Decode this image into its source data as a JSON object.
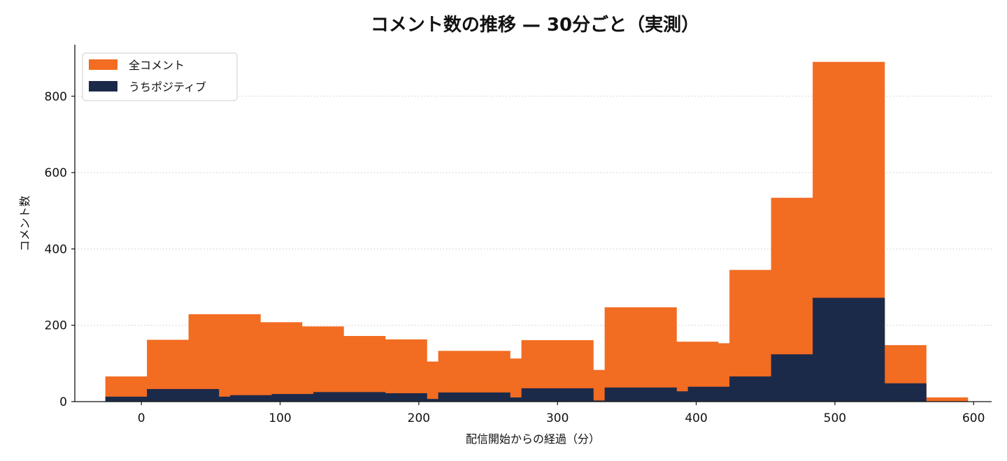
{
  "chart_data": {
    "type": "bar",
    "stacking": "overlay",
    "title": "コメント数の推移 — 30分ごと（実測）",
    "xlabel": "配信開始からの経過（分）",
    "ylabel": "コメント数",
    "xlim": [
      -48,
      613
    ],
    "ylim": [
      0,
      935
    ],
    "bar_width": 26,
    "x_ticks": [
      0,
      100,
      200,
      300,
      400,
      500,
      600
    ],
    "y_ticks": [
      0,
      200,
      400,
      600,
      800
    ],
    "grid": "y-dotted",
    "legend_position": "top-left",
    "x": [
      0,
      30,
      60,
      90,
      120,
      150,
      180,
      210,
      240,
      270,
      300,
      330,
      360,
      390,
      420,
      450,
      480,
      510,
      540,
      570
    ],
    "series": [
      {
        "name": "全コメント",
        "color": "#F26C22",
        "values": [
          66,
          162,
          229,
          208,
          197,
          172,
          163,
          105,
          133,
          113,
          161,
          83,
          247,
          157,
          153,
          345,
          534,
          890,
          148,
          11
        ]
      },
      {
        "name": "うちポジティブ",
        "color": "#1C2A4A",
        "values": [
          13,
          33,
          13,
          17,
          20,
          25,
          22,
          7,
          24,
          11,
          35,
          3,
          37,
          27,
          39,
          66,
          124,
          272,
          48,
          1
        ]
      }
    ]
  }
}
